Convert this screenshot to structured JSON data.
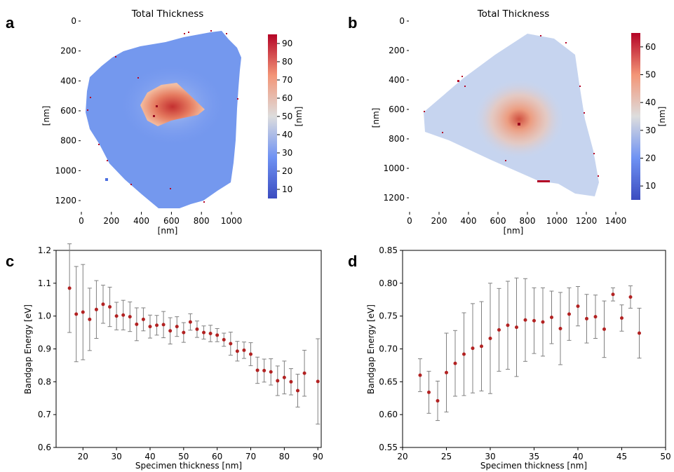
{
  "panels": {
    "a": {
      "letter": "a"
    },
    "b": {
      "letter": "b"
    },
    "c": {
      "letter": "c"
    },
    "d": {
      "letter": "d"
    }
  },
  "colors": {
    "marker": "#b22222",
    "errorbar": "#808080",
    "cmap_low": "#3b4cc0",
    "cmap_mid": "#dddddd",
    "cmap_high": "#b40426"
  },
  "chart_data": [
    {
      "id": "a",
      "type": "heatmap",
      "title": "Total Thickness",
      "xlabel": "[nm]",
      "ylabel": "[nm]",
      "colorbar_label": "[nm]",
      "x_ticks": [
        0,
        200,
        400,
        600,
        800,
        1000
      ],
      "y_ticks": [
        0,
        200,
        400,
        600,
        800,
        1000,
        1200
      ],
      "xlim": [
        0,
        1100
      ],
      "ylim": [
        0,
        1280
      ],
      "colorbar_range": [
        5,
        95
      ],
      "colorbar_ticks": [
        10,
        20,
        30,
        40,
        50,
        60,
        70,
        80,
        90
      ],
      "description_values": {
        "background_thickness": 22,
        "center_thickness": 85
      }
    },
    {
      "id": "b",
      "type": "heatmap",
      "title": "Total Thickness",
      "xlabel": "[nm]",
      "ylabel": "[nm]",
      "colorbar_label": "[nm]",
      "x_ticks": [
        0,
        200,
        400,
        600,
        800,
        1000,
        1200,
        1400
      ],
      "y_ticks": [
        0,
        200,
        400,
        600,
        800,
        1000,
        1200
      ],
      "xlim": [
        0,
        1400
      ],
      "ylim": [
        0,
        1300
      ],
      "colorbar_range": [
        5,
        65
      ],
      "colorbar_ticks": [
        10,
        20,
        30,
        40,
        50,
        60
      ],
      "description_values": {
        "background_thickness": 28,
        "center_thickness": 50
      }
    },
    {
      "id": "c",
      "type": "scatter",
      "xlabel": "Specimen thickness [nm]",
      "ylabel": "Bandgap Energy [eV]",
      "xlim": [
        12,
        91
      ],
      "ylim": [
        0.6,
        1.2
      ],
      "x_ticks": [
        20,
        30,
        40,
        50,
        60,
        70,
        80,
        90
      ],
      "y_ticks": [
        0.6,
        0.7,
        0.8,
        0.9,
        1.0,
        1.1,
        1.2
      ],
      "y_tick_labels": [
        "0.6",
        "0.7",
        "0.8",
        "0.9",
        "1.0",
        "1.1",
        "1.2"
      ],
      "series": [
        {
          "x": [
            16,
            18,
            20,
            22,
            24,
            26,
            28,
            30,
            32,
            34,
            36,
            38,
            40,
            42,
            44,
            46,
            48,
            50,
            52,
            54,
            56,
            58,
            60,
            62,
            64,
            66,
            68,
            70,
            72,
            74,
            76,
            78,
            80,
            82,
            84,
            86,
            90
          ],
          "y": [
            1.085,
            1.006,
            1.012,
            0.99,
            1.02,
            1.036,
            1.028,
            1.0,
            1.003,
            0.998,
            0.975,
            0.99,
            0.968,
            0.972,
            0.974,
            0.955,
            0.968,
            0.95,
            0.982,
            0.96,
            0.95,
            0.947,
            0.942,
            0.928,
            0.916,
            0.893,
            0.896,
            0.884,
            0.835,
            0.834,
            0.83,
            0.803,
            0.813,
            0.8,
            0.773,
            0.826,
            0.801
          ],
          "err": [
            0.135,
            0.145,
            0.145,
            0.095,
            0.088,
            0.058,
            0.06,
            0.042,
            0.045,
            0.045,
            0.05,
            0.035,
            0.035,
            0.03,
            0.04,
            0.04,
            0.03,
            0.03,
            0.025,
            0.025,
            0.02,
            0.025,
            0.02,
            0.02,
            0.035,
            0.03,
            0.025,
            0.035,
            0.04,
            0.035,
            0.04,
            0.045,
            0.05,
            0.04,
            0.05,
            0.07,
            0.13
          ]
        }
      ]
    },
    {
      "id": "d",
      "type": "scatter",
      "xlabel": "Specimen thickness [nm]",
      "ylabel": "Bandgap Energy [eV]",
      "xlim": [
        20,
        50
      ],
      "ylim": [
        0.55,
        0.85
      ],
      "x_ticks": [
        20,
        25,
        30,
        35,
        40,
        45,
        50
      ],
      "y_ticks": [
        0.55,
        0.6,
        0.65,
        0.7,
        0.75,
        0.8,
        0.85
      ],
      "y_tick_labels": [
        "0.55",
        "0.60",
        "0.65",
        "0.70",
        "0.75",
        "0.80",
        "0.85"
      ],
      "series": [
        {
          "x": [
            22,
            23,
            24,
            25,
            26,
            27,
            28,
            29,
            30,
            31,
            32,
            33,
            34,
            35,
            36,
            37,
            38,
            39,
            40,
            41,
            42,
            43,
            44,
            45,
            46,
            47
          ],
          "y": [
            0.66,
            0.634,
            0.621,
            0.664,
            0.678,
            0.692,
            0.701,
            0.704,
            0.716,
            0.729,
            0.736,
            0.733,
            0.744,
            0.743,
            0.741,
            0.748,
            0.731,
            0.753,
            0.765,
            0.746,
            0.749,
            0.73,
            0.783,
            0.747,
            0.779,
            0.724
          ],
          "err": [
            0.025,
            0.032,
            0.03,
            0.06,
            0.05,
            0.063,
            0.068,
            0.068,
            0.084,
            0.063,
            0.067,
            0.075,
            0.063,
            0.05,
            0.052,
            0.04,
            0.055,
            0.04,
            0.03,
            0.037,
            0.033,
            0.043,
            0.01,
            0.02,
            0.017,
            0.038
          ]
        }
      ]
    }
  ]
}
